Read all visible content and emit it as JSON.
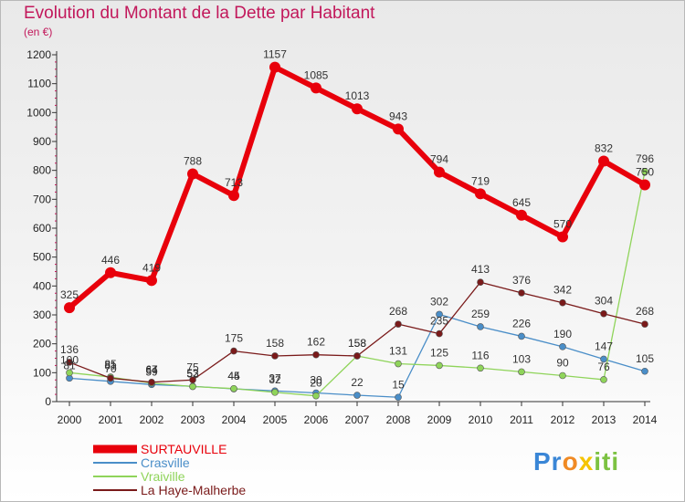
{
  "chart_data": {
    "type": "line",
    "title": "Evolution du Montant de la Dette par Habitant",
    "subtitle": "(en €)",
    "x": [
      2000,
      2001,
      2002,
      2003,
      2004,
      2005,
      2006,
      2007,
      2008,
      2009,
      2010,
      2011,
      2012,
      2013,
      2014
    ],
    "ylim": [
      0,
      1200
    ],
    "y_ticks": [
      0,
      100,
      200,
      300,
      400,
      500,
      600,
      700,
      800,
      900,
      1000,
      1100,
      1200
    ],
    "grid": false,
    "legend_position": "bottom-left",
    "series": [
      {
        "name": "SURTAUVILLE",
        "color": "#e8000b",
        "width": 6,
        "values": [
          325,
          446,
          419,
          788,
          713,
          1157,
          1085,
          1013,
          943,
          794,
          719,
          645,
          570,
          832,
          750
        ],
        "labels": [
          "325",
          "446",
          "419",
          "788",
          "713",
          "1157",
          "1085",
          "1013",
          "943",
          "794",
          "719",
          "645",
          "570",
          "832",
          "750"
        ]
      },
      {
        "name": "Crasville",
        "color": "#4a8ec8",
        "width": 1.3,
        "values": [
          81,
          70,
          59,
          53,
          44,
          37,
          30,
          22,
          15,
          302,
          259,
          226,
          190,
          147,
          105
        ],
        "labels": [
          "81",
          "70",
          "59",
          "53",
          "44",
          "37",
          "30",
          "22",
          "15",
          "302",
          "259",
          "226",
          "190",
          "147",
          "105"
        ]
      },
      {
        "name": "Vraiville",
        "color": "#8fd45a",
        "width": 1.3,
        "values": [
          100,
          85,
          64,
          52,
          45,
          32,
          20,
          158,
          131,
          125,
          116,
          103,
          90,
          76,
          796
        ],
        "labels": [
          "100",
          "85",
          "64",
          "52",
          "45",
          "32",
          "20",
          "158",
          "131",
          "125",
          "116",
          "103",
          "90",
          "76",
          "796"
        ]
      },
      {
        "name": "La Haye-Malherbe",
        "color": "#7a1a1a",
        "width": 1.3,
        "values": [
          136,
          81,
          67,
          75,
          175,
          158,
          162,
          158,
          268,
          235,
          413,
          376,
          342,
          304,
          268
        ],
        "labels": [
          "136",
          "81",
          "67",
          "75",
          "175",
          "158",
          "162",
          "158",
          "268",
          "235",
          "413",
          "376",
          "342",
          "304",
          "268"
        ]
      }
    ]
  },
  "logo": {
    "p1": "Pr",
    "p2": "o",
    "p3": "x",
    "p4": "iti"
  }
}
